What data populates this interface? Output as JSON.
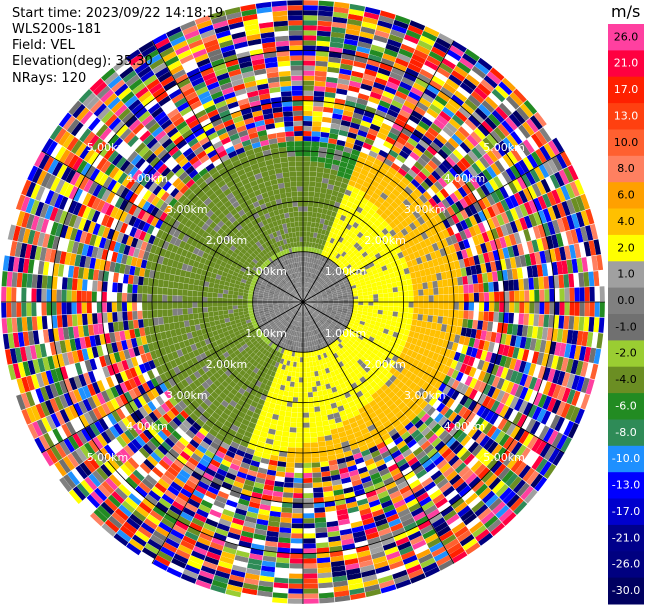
{
  "header": {
    "start_time": "Start time: 2023/09/22 14:18:19",
    "instrument": "WLS200s-181",
    "field": "Field: VEL",
    "elevation": "Elevation(deg): 35.30",
    "nrays": "NRays: 120"
  },
  "chart_data": {
    "type": "heatmap",
    "projection": "polar-ppi",
    "n_rays": 120,
    "range_rings_km": [
      1.0,
      2.0,
      3.0,
      4.0,
      5.0
    ],
    "range_ring_labels": [
      "1.00km",
      "2.00km",
      "3.00km",
      "4.00km",
      "5.00km"
    ],
    "max_range_km": 6.0,
    "colorbar": {
      "unit": "m/s",
      "tick_labels": [
        "26.0",
        "21.0",
        "17.0",
        "13.0",
        "10.0",
        "8.0",
        "6.0",
        "4.0",
        "2.0",
        "1.0",
        "0.0",
        "-1.0",
        "-2.0",
        "-4.0",
        "-6.0",
        "-8.0",
        "-10.0",
        "-13.0",
        "-17.0",
        "-21.0",
        "-26.0",
        "-30.0"
      ],
      "bin_colors": [
        "#ff40a0",
        "#ff0040",
        "#ff2000",
        "#ff4010",
        "#ff6030",
        "#ff8060",
        "#ffa000",
        "#ffc000",
        "#ffff00",
        "#a0a0a0",
        "#808080",
        "#707070",
        "#9acd32",
        "#6b8e23",
        "#228b22",
        "#2e8b57",
        "#1e90ff",
        "#0000ff",
        "#0000cd",
        "#00008b",
        "#000080",
        "#000060"
      ]
    },
    "velocity_pattern": {
      "near_range_km": 1.0,
      "near_value": 0.0,
      "clean_range_km": [
        1.0,
        3.2
      ],
      "positive_sector_deg": [
        20,
        200
      ],
      "positive_values": [
        2.0,
        6.0
      ],
      "negative_values": [
        -2.0,
        -6.0
      ],
      "noise_beyond_km": 3.2
    }
  }
}
